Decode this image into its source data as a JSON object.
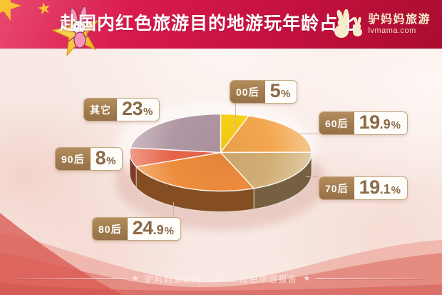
{
  "header": {
    "title": "赴国内红色旅游目的地游玩年龄占比",
    "logo": {
      "brand": "驴妈妈旅游",
      "domain": "lvmama.com"
    },
    "accent_color": "#c8123f"
  },
  "icons": {
    "mascot": "gold-star-with-rabbit-mascot",
    "brand_logo": "two-rabbit-silhouettes",
    "footer_separator": "★"
  },
  "chart_data": {
    "type": "pie",
    "style": "3d",
    "title": "赴国内红色旅游目的地游玩年龄占比",
    "unit": "%",
    "start_angle_deg": -90,
    "direction": "clockwise",
    "legend_position": "callout badges around pie",
    "slices": [
      {
        "label": "00后",
        "value": 5,
        "display": {
          "int": "5",
          "dec": "",
          "pct": "%"
        },
        "color": "#fbd116"
      },
      {
        "label": "60后",
        "value": 19.9,
        "display": {
          "int": "19",
          "dec": ".9",
          "pct": "%"
        },
        "color": "#f3a64e"
      },
      {
        "label": "70后",
        "value": 19.1,
        "display": {
          "int": "19",
          "dec": ".1",
          "pct": "%"
        },
        "color": "#d1ae74"
      },
      {
        "label": "80后",
        "value": 24.9,
        "display": {
          "int": "24",
          "dec": ".9",
          "pct": "%"
        },
        "color": "#ee8c3d"
      },
      {
        "label": "90后",
        "value": 8,
        "display": {
          "int": "8",
          "dec": "",
          "pct": "%"
        },
        "color": "#e6654a"
      },
      {
        "label": "其它",
        "value": 23,
        "display": {
          "int": "23",
          "dec": "",
          "pct": "%"
        },
        "color": "#b197a3"
      }
    ]
  },
  "footer": {
    "star": "★",
    "text": "驴妈妈旅游网 · 2018 红色旅游报告"
  }
}
